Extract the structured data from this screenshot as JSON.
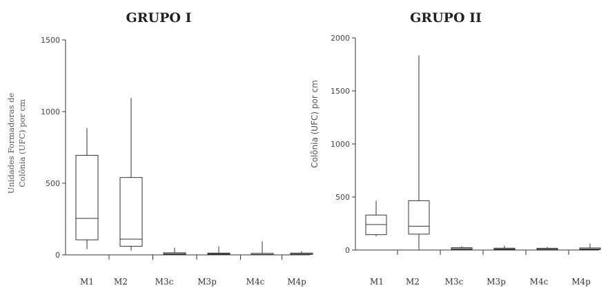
{
  "chart_data": [
    {
      "type": "box",
      "title": "GRUPO I",
      "ylabel_lines": [
        "Unidades Formadoras de",
        "Colônia (UFC) por cm"
      ],
      "ylim": [
        0,
        1500
      ],
      "yticks": [
        "0",
        "500",
        "1000",
        "1500"
      ],
      "categories": [
        "M1",
        "M2",
        "M3c",
        "M3p",
        "M4c",
        "M4p"
      ],
      "boxes": [
        {
          "min": 40,
          "q1": 105,
          "median": 255,
          "q3": 695,
          "max": 885
        },
        {
          "min": 30,
          "q1": 60,
          "median": 110,
          "q3": 540,
          "max": 1095
        },
        {
          "min": 0,
          "q1": 3,
          "median": 8,
          "q3": 15,
          "max": 50
        },
        {
          "min": 0,
          "q1": 3,
          "median": 7,
          "q3": 12,
          "max": 60
        },
        {
          "min": 0,
          "q1": 1,
          "median": 3,
          "q3": 5,
          "max": 95
        },
        {
          "min": 0,
          "q1": 3,
          "median": 6,
          "q3": 12,
          "max": 25
        }
      ]
    },
    {
      "type": "box",
      "title": "GRUPO II",
      "ylabel_lines": [
        "Colônia (UFC) por cm"
      ],
      "ylim": [
        0,
        2000
      ],
      "yticks": [
        "0",
        "500",
        "1000",
        "1500",
        "2000"
      ],
      "categories": [
        "M1",
        "M2",
        "M3c",
        "M3p",
        "M4c",
        "M4p"
      ],
      "boxes": [
        {
          "min": 130,
          "q1": 145,
          "median": 240,
          "q3": 330,
          "max": 465
        },
        {
          "min": 0,
          "q1": 150,
          "median": 225,
          "q3": 465,
          "max": 1835
        },
        {
          "min": 0,
          "q1": 5,
          "median": 12,
          "q3": 22,
          "max": 35
        },
        {
          "min": 0,
          "q1": 5,
          "median": 10,
          "q3": 18,
          "max": 40
        },
        {
          "min": 0,
          "q1": 4,
          "median": 8,
          "q3": 12,
          "max": 30
        },
        {
          "min": 0,
          "q1": 5,
          "median": 10,
          "q3": 20,
          "max": 60
        }
      ]
    }
  ]
}
